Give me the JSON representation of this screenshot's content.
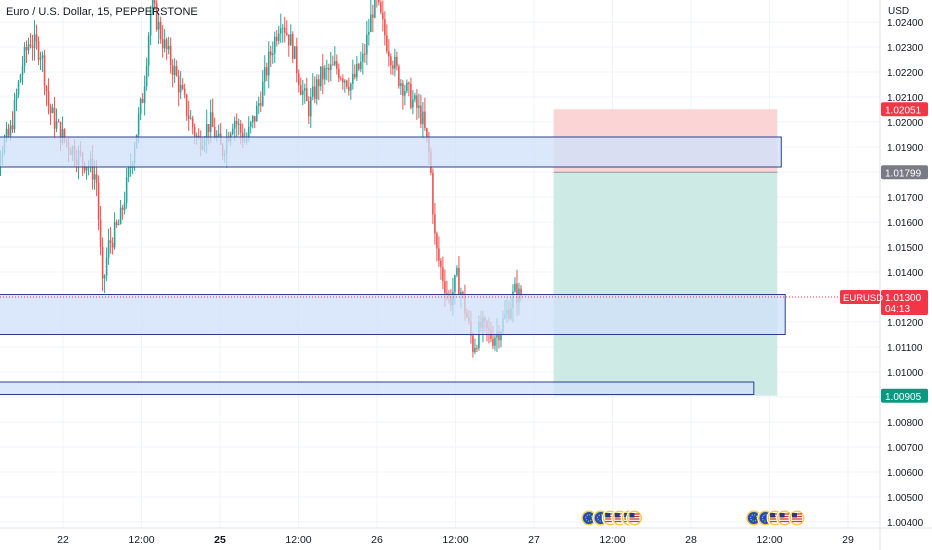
{
  "header": {
    "symbol_title": "Euro / U.S. Dollar, 15, PEPPERSTONE",
    "currency": "USD"
  },
  "colors": {
    "up": "#26a69a",
    "down": "#ef5350",
    "zone_fill": "#cfe0fb",
    "zone_stroke": "#2a3f8a",
    "target_fill": "#cdebe4",
    "stop_fill": "#fbd5d5",
    "price_label": "#f23645",
    "profit_label": "#089981",
    "entry_label": "#787b86",
    "grid": "#f0f3fa",
    "axis_text": "#131722"
  },
  "chart_data": {
    "type": "candlestick",
    "symbol": "EURUSD",
    "interval": "15",
    "ylim": [
      1.0038,
      1.0254
    ],
    "y_ticks": [
      1.004,
      1.005,
      1.006,
      1.007,
      1.008,
      1.009,
      1.01,
      1.011,
      1.012,
      1.013,
      1.014,
      1.015,
      1.016,
      1.017,
      1.018,
      1.019,
      1.02,
      1.021,
      1.022,
      1.023,
      1.024
    ],
    "y_tick_labels": [
      "1.00400",
      "1.00500",
      "1.00600",
      "1.00700",
      "1.00800",
      "1.00900",
      "1.01000",
      "1.01100",
      "1.01200",
      "1.01300",
      "1.01400",
      "1.01500",
      "1.01600",
      "1.01700",
      "1.01800",
      "1.01900",
      "1.02000",
      "1.02100",
      "1.02200",
      "1.02300",
      "1.02400"
    ],
    "x_ticks": [
      {
        "t": 1.0,
        "label": "22",
        "bold": false
      },
      {
        "t": 2.0,
        "label": "12:00",
        "bold": false
      },
      {
        "t": 3.0,
        "label": "25",
        "bold": true
      },
      {
        "t": 4.0,
        "label": "12:00",
        "bold": false
      },
      {
        "t": 5.0,
        "label": "26",
        "bold": false
      },
      {
        "t": 6.0,
        "label": "12:00",
        "bold": false
      },
      {
        "t": 7.0,
        "label": "27",
        "bold": false
      },
      {
        "t": 8.0,
        "label": "12:00",
        "bold": false
      },
      {
        "t": 9.0,
        "label": "28",
        "bold": false
      },
      {
        "t": 10.0,
        "label": "12:00",
        "bold": false
      },
      {
        "t": 11.0,
        "label": "29",
        "bold": false
      }
    ],
    "price_path": [
      [
        0.0,
        1.0185
      ],
      [
        0.1,
        1.02
      ],
      [
        0.2,
        1.0188
      ],
      [
        0.35,
        1.0195
      ],
      [
        0.5,
        1.0222
      ],
      [
        0.6,
        1.0233
      ],
      [
        0.75,
        1.0228
      ],
      [
        0.85,
        1.0205
      ],
      [
        1.0,
        1.0195
      ],
      [
        1.2,
        1.0187
      ],
      [
        1.35,
        1.0183
      ],
      [
        1.45,
        1.0178
      ],
      [
        1.53,
        1.0133
      ],
      [
        1.6,
        1.015
      ],
      [
        1.75,
        1.016
      ],
      [
        1.9,
        1.0185
      ],
      [
        2.05,
        1.0212
      ],
      [
        2.15,
        1.0248
      ],
      [
        2.3,
        1.0232
      ],
      [
        2.45,
        1.022
      ],
      [
        2.6,
        1.0205
      ],
      [
        2.75,
        1.0192
      ],
      [
        2.9,
        1.02
      ],
      [
        3.05,
        1.0188
      ],
      [
        3.2,
        1.0202
      ],
      [
        3.35,
        1.0192
      ],
      [
        3.5,
        1.0205
      ],
      [
        3.65,
        1.0225
      ],
      [
        3.8,
        1.0242
      ],
      [
        3.95,
        1.023
      ],
      [
        4.05,
        1.0215
      ],
      [
        4.15,
        1.0205
      ],
      [
        4.3,
        1.0218
      ],
      [
        4.5,
        1.0222
      ],
      [
        4.7,
        1.0215
      ],
      [
        4.85,
        1.0225
      ],
      [
        5.0,
        1.025
      ],
      [
        5.15,
        1.0232
      ],
      [
        5.3,
        1.0218
      ],
      [
        5.45,
        1.021
      ],
      [
        5.6,
        1.0202
      ],
      [
        5.7,
        1.0185
      ],
      [
        5.77,
        1.015
      ],
      [
        5.85,
        1.014
      ],
      [
        5.95,
        1.0128
      ],
      [
        6.05,
        1.0138
      ],
      [
        6.15,
        1.0125
      ],
      [
        6.25,
        1.011
      ],
      [
        6.35,
        1.0118
      ],
      [
        6.5,
        1.0114
      ],
      [
        6.6,
        1.0118
      ],
      [
        6.7,
        1.0125
      ],
      [
        6.78,
        1.0132
      ],
      [
        6.85,
        1.013
      ]
    ],
    "zones": [
      {
        "x_start": -0.5,
        "x_end": 10.15,
        "y_top": 1.0194,
        "y_bottom": 1.0182
      },
      {
        "x_start": -0.5,
        "x_end": 10.2,
        "y_top": 1.0131,
        "y_bottom": 1.0115
      },
      {
        "x_start": -0.5,
        "x_end": 9.8,
        "y_top": 1.0096,
        "y_bottom": 1.0091
      }
    ],
    "position": {
      "x_start": 7.25,
      "x_end": 10.1,
      "stop": 1.02051,
      "entry": 1.01799,
      "target": 1.00905
    },
    "current_price": 1.013,
    "price_labels": [
      {
        "name": "stop-price-label",
        "value": 1.02051,
        "text": "1.02051",
        "color": "#f23645"
      },
      {
        "name": "entry-price-label",
        "value": 1.01799,
        "text": "1.01799",
        "color": "#787b86"
      },
      {
        "name": "target-price-label",
        "value": 1.00905,
        "text": "1.00905",
        "color": "#089981"
      }
    ],
    "current_label": {
      "symbol": "EURUSD",
      "price": "1.01300",
      "countdown": "04:13"
    },
    "events": [
      {
        "t": 7.7,
        "icons": [
          "eu-flag-icon"
        ]
      },
      {
        "t": 7.85,
        "icons": [
          "eu-flag-icon",
          "us-flag-icon",
          "us-flag-icon",
          "us-flag-icon"
        ]
      },
      {
        "t": 8.28,
        "icons": [
          "us-flag-icon"
        ]
      },
      {
        "t": 9.8,
        "icons": [
          "eu-flag-icon"
        ]
      },
      {
        "t": 9.95,
        "icons": [
          "eu-flag-icon",
          "us-flag-icon",
          "us-flag-icon"
        ]
      },
      {
        "t": 10.35,
        "icons": [
          "us-flag-icon"
        ]
      }
    ]
  }
}
